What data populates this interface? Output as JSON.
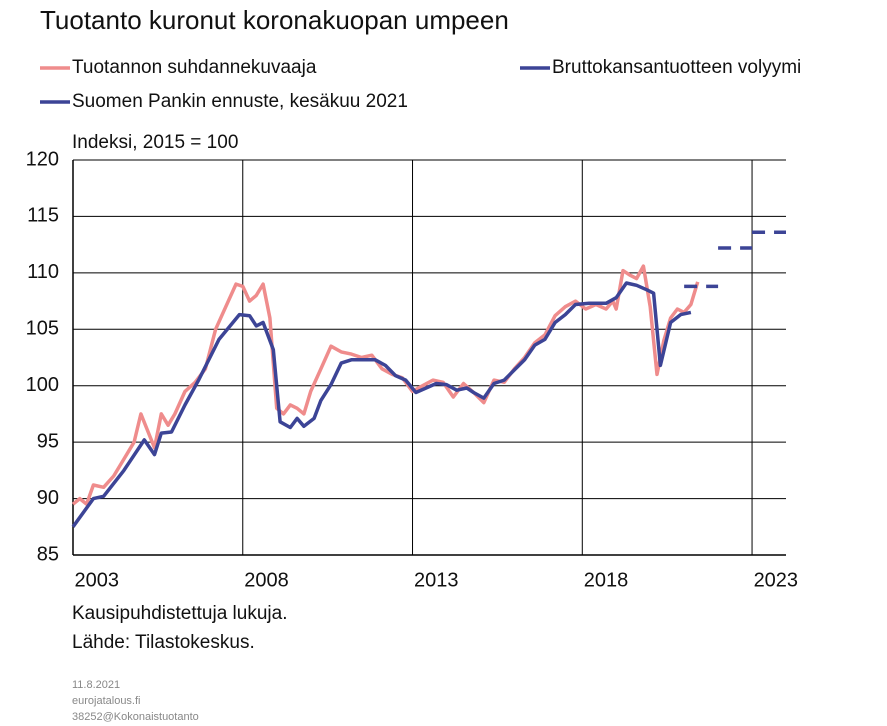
{
  "chart_data": {
    "type": "line",
    "title": "Tuotanto kuronut koronakuopan umpeen",
    "ylabel": "Indeksi, 2015 = 100",
    "notes": [
      "Kausipuhdistettuja  lukuja.",
      "Lähde: Tilastokeskus."
    ],
    "footer": [
      "11.8.2021",
      "eurojatalous.fi",
      "38252@Kokonaistuotanto"
    ],
    "xlim": [
      2003,
      2024
    ],
    "xticks": [
      2003,
      2008,
      2013,
      2018,
      2023
    ],
    "ylim": [
      85,
      120
    ],
    "yticks": [
      85,
      90,
      95,
      100,
      105,
      110,
      115,
      120
    ],
    "grid": true,
    "series": [
      {
        "name": "Tuotannon suhdannekuvaaja",
        "color": "#ef8c8c",
        "x": [
          2003.0,
          2003.2,
          2003.4,
          2003.6,
          2003.9,
          2004.2,
          2004.5,
          2004.8,
          2005.0,
          2005.2,
          2005.4,
          2005.6,
          2005.8,
          2006.0,
          2006.3,
          2006.6,
          2006.9,
          2007.2,
          2007.5,
          2007.8,
          2008.0,
          2008.2,
          2008.4,
          2008.6,
          2008.8,
          2009.0,
          2009.2,
          2009.4,
          2009.6,
          2009.8,
          2010.0,
          2010.3,
          2010.6,
          2010.9,
          2011.2,
          2011.5,
          2011.8,
          2012.1,
          2012.4,
          2012.7,
          2013.0,
          2013.3,
          2013.6,
          2013.9,
          2014.2,
          2014.5,
          2014.8,
          2015.1,
          2015.4,
          2015.7,
          2016.0,
          2016.3,
          2016.6,
          2016.9,
          2017.2,
          2017.5,
          2017.8,
          2018.1,
          2018.4,
          2018.7,
          2018.9,
          2019.0,
          2019.2,
          2019.4,
          2019.6,
          2019.8,
          2020.0,
          2020.2,
          2020.4,
          2020.6,
          2020.8,
          2021.0,
          2021.2,
          2021.4
        ],
        "values": [
          89.5,
          90,
          89.5,
          91.2,
          91,
          92,
          93.5,
          95,
          97.5,
          96,
          94.5,
          97.5,
          96.5,
          97.5,
          99.5,
          100.3,
          101.5,
          105,
          107,
          109,
          108.8,
          107.5,
          108,
          109,
          106,
          98,
          97.5,
          98.3,
          98,
          97.5,
          99.5,
          101.5,
          103.5,
          103,
          102.8,
          102.5,
          102.7,
          101.5,
          101,
          100.7,
          99.5,
          100,
          100.5,
          100.3,
          99,
          100.2,
          99.4,
          98.5,
          100.5,
          100.3,
          101.5,
          102.5,
          103.8,
          104.5,
          106.2,
          107,
          107.5,
          106.8,
          107.2,
          106.8,
          107.5,
          106.8,
          110.2,
          109.8,
          109.5,
          110.6,
          107,
          101,
          104,
          106,
          106.8,
          106.5,
          107.2,
          109.2
        ]
      },
      {
        "name": "Bruttokansantuotteen volyymi",
        "color": "#3c4496",
        "x": [
          2003.0,
          2003.6,
          2003.9,
          2004.5,
          2005.1,
          2005.4,
          2005.6,
          2005.9,
          2006.3,
          2006.7,
          2007.3,
          2007.9,
          2008.2,
          2008.4,
          2008.6,
          2008.9,
          2009.1,
          2009.4,
          2009.6,
          2009.8,
          2010.1,
          2010.3,
          2010.6,
          2010.9,
          2011.2,
          2011.9,
          2012.2,
          2012.5,
          2012.8,
          2013.1,
          2013.4,
          2013.7,
          2014.0,
          2014.3,
          2014.6,
          2014.8,
          2015.1,
          2015.4,
          2015.7,
          2016.0,
          2016.3,
          2016.6,
          2016.9,
          2017.2,
          2017.5,
          2017.8,
          2018.2,
          2018.7,
          2019.0,
          2019.3,
          2019.6,
          2019.9,
          2020.1,
          2020.3,
          2020.6,
          2020.9,
          2021.2
        ],
        "values": [
          87.5,
          90,
          90.2,
          92.5,
          95.2,
          93.9,
          95.8,
          95.9,
          98.3,
          100.5,
          104.1,
          106.3,
          106.2,
          105.3,
          105.6,
          103.2,
          96.8,
          96.3,
          97.1,
          96.4,
          97.1,
          98.7,
          100.1,
          102,
          102.3,
          102.3,
          101.8,
          100.9,
          100.5,
          99.4,
          99.8,
          100.2,
          100.1,
          99.6,
          99.8,
          99.4,
          98.9,
          100.2,
          100.5,
          101.4,
          102.3,
          103.6,
          104.1,
          105.6,
          106.3,
          107.2,
          107.3,
          107.3,
          107.8,
          109.1,
          108.9,
          108.5,
          108.2,
          101.8,
          105.6,
          106.3,
          106.5
        ]
      },
      {
        "name": "Suomen Pankin ennuste, kesäkuu 2021",
        "color": "#3c4496",
        "dash": true,
        "x": [
          2021,
          2022,
          2023
        ],
        "values": [
          108.8,
          112.2,
          113.6
        ]
      }
    ]
  }
}
